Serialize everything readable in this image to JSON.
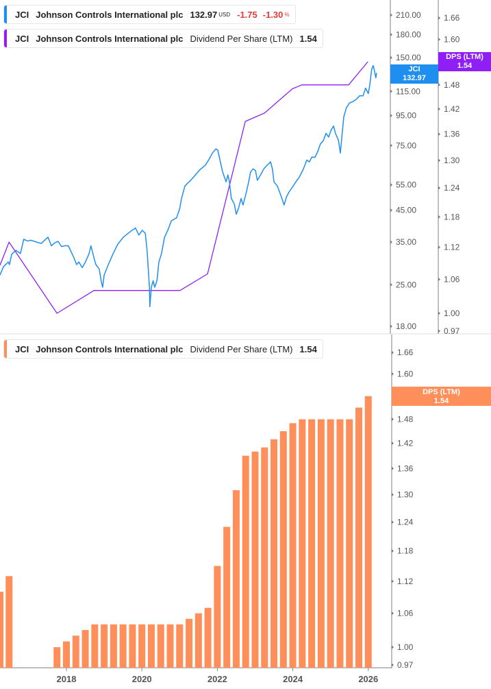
{
  "legend_price": {
    "ticker": "JCI",
    "name": "Johnson Controls International plc",
    "price": "132.97",
    "currency": "USD",
    "change": "-1.75",
    "change_pct": "-1.30",
    "pct_sign": "%",
    "color": "#1e8ef0"
  },
  "legend_dps_top": {
    "ticker": "JCI",
    "name": "Johnson Controls International plc",
    "metric": "Dividend Per Share (LTM)",
    "value": "1.54",
    "color": "#8f1ff5"
  },
  "legend_dps_bottom": {
    "ticker": "JCI",
    "name": "Johnson Controls International plc",
    "metric": "Dividend Per Share (LTM)",
    "value": "1.54",
    "color": "#ff8f5a"
  },
  "tags": {
    "price": {
      "line1": "JCI",
      "line2": "132.97"
    },
    "dps_top": {
      "line1": "DPS (LTM)",
      "line2": "1.54"
    },
    "dps_bottom": {
      "line1": "DPS (LTM)",
      "line2": "1.54"
    }
  },
  "chart_data": [
    {
      "type": "line",
      "scale": "log",
      "series_price": {
        "name": "JCI",
        "color": "#1e8ef0",
        "points": [
          [
            2016.24,
            27.0
          ],
          [
            2016.33,
            28.8
          ],
          [
            2016.46,
            29.9
          ],
          [
            2016.49,
            29.3
          ],
          [
            2016.55,
            31.8
          ],
          [
            2016.66,
            32.8
          ],
          [
            2016.78,
            32.0
          ],
          [
            2016.87,
            35.8
          ],
          [
            2016.97,
            35.3
          ],
          [
            2017.06,
            35.5
          ],
          [
            2017.33,
            34.6
          ],
          [
            2017.51,
            36.4
          ],
          [
            2017.6,
            34.0
          ],
          [
            2017.69,
            34.8
          ],
          [
            2017.78,
            35.2
          ],
          [
            2017.87,
            33.8
          ],
          [
            2017.96,
            34.0
          ],
          [
            2018.05,
            34.0
          ],
          [
            2018.2,
            30.9
          ],
          [
            2018.27,
            29.3
          ],
          [
            2018.33,
            29.9
          ],
          [
            2018.42,
            28.6
          ],
          [
            2018.51,
            30.0
          ],
          [
            2018.6,
            32.0
          ],
          [
            2018.65,
            34.0
          ],
          [
            2018.73,
            30.9
          ],
          [
            2018.78,
            29.3
          ],
          [
            2018.87,
            28.3
          ],
          [
            2018.93,
            25.4
          ],
          [
            2018.96,
            24.5
          ],
          [
            2019.0,
            27.0
          ],
          [
            2019.11,
            29.3
          ],
          [
            2019.23,
            31.8
          ],
          [
            2019.36,
            34.4
          ],
          [
            2019.51,
            36.4
          ],
          [
            2019.6,
            37.2
          ],
          [
            2019.69,
            38.0
          ],
          [
            2019.83,
            39.1
          ],
          [
            2019.92,
            37.0
          ],
          [
            2020.01,
            38.4
          ],
          [
            2020.09,
            37.5
          ],
          [
            2020.14,
            32.5
          ],
          [
            2020.2,
            24.5
          ],
          [
            2020.21,
            21.0
          ],
          [
            2020.25,
            24.5
          ],
          [
            2020.3,
            25.8
          ],
          [
            2020.34,
            24.5
          ],
          [
            2020.4,
            25.8
          ],
          [
            2020.45,
            29.9
          ],
          [
            2020.52,
            32.0
          ],
          [
            2020.6,
            36.4
          ],
          [
            2020.69,
            38.5
          ],
          [
            2020.78,
            41.4
          ],
          [
            2020.92,
            42.4
          ],
          [
            2021.0,
            45.5
          ],
          [
            2021.05,
            49.4
          ],
          [
            2021.14,
            54.5
          ],
          [
            2021.32,
            57.5
          ],
          [
            2021.54,
            62.0
          ],
          [
            2021.68,
            64.2
          ],
          [
            2021.77,
            66.9
          ],
          [
            2021.87,
            70.7
          ],
          [
            2021.96,
            73.0
          ],
          [
            2022.01,
            72.4
          ],
          [
            2022.08,
            65.9
          ],
          [
            2022.14,
            60.9
          ],
          [
            2022.23,
            56.3
          ],
          [
            2022.28,
            59.5
          ],
          [
            2022.32,
            56.3
          ],
          [
            2022.37,
            49.4
          ],
          [
            2022.45,
            47.2
          ],
          [
            2022.5,
            43.6
          ],
          [
            2022.56,
            45.7
          ],
          [
            2022.63,
            49.4
          ],
          [
            2022.68,
            46.9
          ],
          [
            2022.77,
            52.0
          ],
          [
            2022.83,
            56.3
          ],
          [
            2022.88,
            60.9
          ],
          [
            2022.95,
            62.4
          ],
          [
            2023.01,
            61.5
          ],
          [
            2023.06,
            57.0
          ],
          [
            2023.14,
            59.3
          ],
          [
            2023.23,
            62.4
          ],
          [
            2023.32,
            64.2
          ],
          [
            2023.41,
            65.9
          ],
          [
            2023.46,
            62.4
          ],
          [
            2023.5,
            56.3
          ],
          [
            2023.59,
            54.5
          ],
          [
            2023.68,
            50.7
          ],
          [
            2023.77,
            46.9
          ],
          [
            2023.83,
            49.9
          ],
          [
            2023.9,
            52.0
          ],
          [
            2023.99,
            54.0
          ],
          [
            2024.08,
            56.3
          ],
          [
            2024.17,
            58.4
          ],
          [
            2024.26,
            61.5
          ],
          [
            2024.32,
            64.2
          ],
          [
            2024.37,
            66.9
          ],
          [
            2024.44,
            65.9
          ],
          [
            2024.5,
            68.4
          ],
          [
            2024.59,
            68.4
          ],
          [
            2024.66,
            71.5
          ],
          [
            2024.73,
            75.9
          ],
          [
            2024.81,
            78.0
          ],
          [
            2024.88,
            82.6
          ],
          [
            2024.95,
            80.2
          ],
          [
            2025.02,
            85.0
          ],
          [
            2025.08,
            87.5
          ],
          [
            2025.13,
            82.6
          ],
          [
            2025.21,
            78.0
          ],
          [
            2025.26,
            70.7
          ],
          [
            2025.3,
            80.2
          ],
          [
            2025.35,
            94.0
          ],
          [
            2025.42,
            101.0
          ],
          [
            2025.5,
            105.0
          ],
          [
            2025.59,
            106.0
          ],
          [
            2025.68,
            108.0
          ],
          [
            2025.77,
            111.0
          ],
          [
            2025.86,
            111.0
          ],
          [
            2025.93,
            118.0
          ],
          [
            2026.0,
            113.0
          ],
          [
            2026.04,
            121.0
          ],
          [
            2026.09,
            137.0
          ],
          [
            2026.13,
            141.0
          ],
          [
            2026.17,
            134.0
          ],
          [
            2026.2,
            128.0
          ],
          [
            2026.22,
            132.97
          ]
        ]
      },
      "series_dps_line": {
        "name": "Dividend Per Share (LTM)",
        "color": "#8f1ff5",
        "points": [
          [
            2016.24,
            1.086
          ],
          [
            2016.48,
            1.13
          ],
          [
            2017.75,
            1.0
          ],
          [
            2018.73,
            1.04
          ],
          [
            2021.01,
            1.04
          ],
          [
            2021.74,
            1.07
          ],
          [
            2022.74,
            1.39
          ],
          [
            2023.25,
            1.41
          ],
          [
            2023.99,
            1.47
          ],
          [
            2024.24,
            1.48
          ],
          [
            2025.48,
            1.48
          ],
          [
            2025.99,
            1.54
          ]
        ]
      },
      "price_axis_ticks": [
        "210.00",
        "180.00",
        "150.00",
        "135.00",
        "115.00",
        "95.00",
        "75.00",
        "55.00",
        "45.00",
        "35.00",
        "25.00",
        "18.00"
      ],
      "dps_axis_ticks": [
        "1.66",
        "1.60",
        "1.48",
        "1.42",
        "1.36",
        "1.30",
        "1.24",
        "1.18",
        "1.12",
        "1.06",
        "1.00",
        "0.97"
      ],
      "grid": false
    },
    {
      "type": "bar",
      "title": "",
      "series": {
        "name": "Dividend Per Share (LTM)",
        "color": "#ff8f5a",
        "x": [
          2016.24,
          2016.48,
          2017.75,
          2018.0,
          2018.25,
          2018.5,
          2018.75,
          2019.0,
          2019.25,
          2019.5,
          2019.75,
          2020.0,
          2020.25,
          2020.5,
          2020.75,
          2021.0,
          2021.25,
          2021.5,
          2021.75,
          2022.0,
          2022.25,
          2022.5,
          2022.75,
          2023.0,
          2023.25,
          2023.5,
          2023.75,
          2024.0,
          2024.25,
          2024.5,
          2024.75,
          2025.0,
          2025.25,
          2025.5,
          2025.75,
          2026.0
        ],
        "values": [
          1.1,
          1.13,
          1.0,
          1.01,
          1.02,
          1.03,
          1.04,
          1.04,
          1.04,
          1.04,
          1.04,
          1.04,
          1.04,
          1.04,
          1.04,
          1.04,
          1.05,
          1.06,
          1.07,
          1.15,
          1.23,
          1.31,
          1.39,
          1.4,
          1.41,
          1.43,
          1.45,
          1.47,
          1.48,
          1.48,
          1.48,
          1.48,
          1.48,
          1.48,
          1.51,
          1.54
        ]
      },
      "y_ticks": [
        "1.66",
        "1.60",
        "1.54",
        "1.48",
        "1.42",
        "1.36",
        "1.30",
        "1.24",
        "1.18",
        "1.12",
        "1.06",
        "1.00",
        "0.97"
      ],
      "x_ticks": [
        "2018",
        "2020",
        "2022",
        "2024",
        "2026"
      ],
      "ylim": [
        0.97,
        1.66
      ],
      "grid": false
    }
  ]
}
